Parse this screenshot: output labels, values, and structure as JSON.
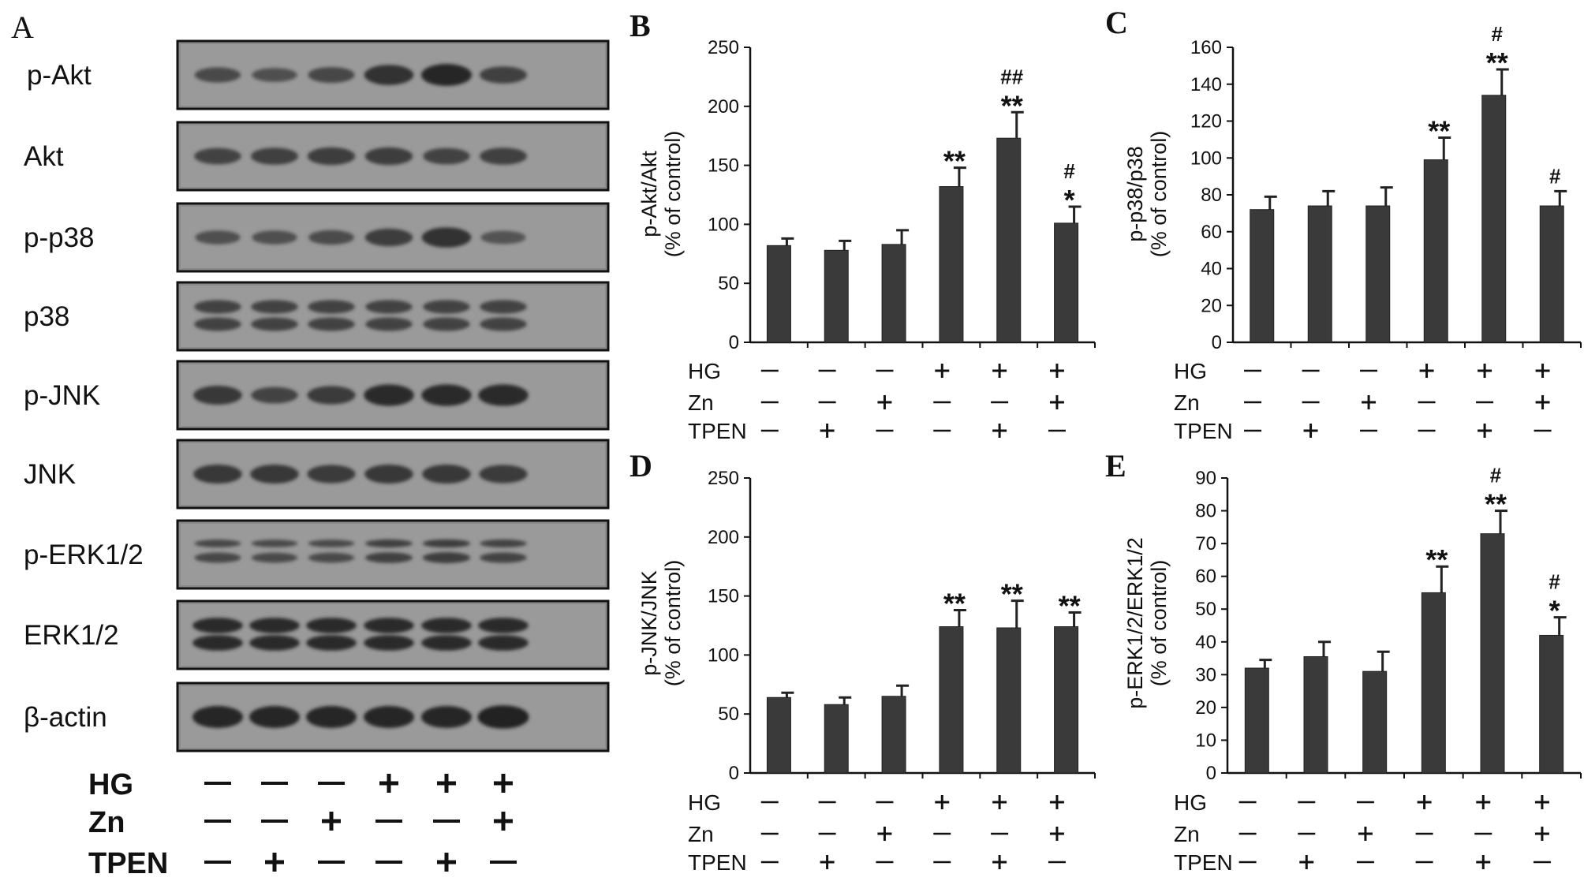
{
  "panel_letters": [
    "A",
    "B",
    "C",
    "D",
    "E"
  ],
  "treatments": {
    "rows": [
      "HG",
      "Zn",
      "TPEN"
    ],
    "signs": [
      [
        "−",
        "−",
        "−",
        "+",
        "+",
        "+"
      ],
      [
        "−",
        "−",
        "+",
        "−",
        "−",
        "+"
      ],
      [
        "−",
        "+",
        "−",
        "−",
        "+",
        "−"
      ]
    ]
  },
  "blot": {
    "letter": "A",
    "rows": [
      {
        "label": "p-Akt",
        "bands": [
          0.45,
          0.35,
          0.5,
          0.85,
          1.0,
          0.6
        ]
      },
      {
        "label": "Akt",
        "bands": [
          0.55,
          0.6,
          0.65,
          0.65,
          0.55,
          0.6
        ]
      },
      {
        "label": "p-p38",
        "bands": [
          0.35,
          0.35,
          0.4,
          0.65,
          0.85,
          0.3
        ]
      },
      {
        "label": "p38",
        "bands": [
          0.55,
          0.55,
          0.55,
          0.55,
          0.55,
          0.55
        ]
      },
      {
        "label": "p-JNK",
        "bands": [
          0.75,
          0.55,
          0.7,
          0.95,
          0.95,
          0.95
        ]
      },
      {
        "label": "JNK",
        "bands": [
          0.75,
          0.75,
          0.7,
          0.75,
          0.75,
          0.7
        ]
      },
      {
        "label": "p-ERK1/2",
        "bands": [
          0.5,
          0.45,
          0.45,
          0.6,
          0.65,
          0.55
        ]
      },
      {
        "label": "ERK1/2",
        "bands": [
          0.95,
          0.95,
          0.95,
          0.95,
          0.95,
          0.95
        ]
      },
      {
        "label": "β-actin",
        "bands": [
          1.0,
          1.0,
          1.0,
          1.0,
          1.0,
          1.1
        ]
      }
    ]
  },
  "chart_data": [
    {
      "panel": "B",
      "type": "bar",
      "ylabel": [
        "p-Akt/Akt",
        "(% of control)"
      ],
      "ylim": [
        0,
        250
      ],
      "yticks": [
        0,
        50,
        100,
        150,
        200,
        250
      ],
      "values": [
        82,
        78,
        83,
        132,
        173,
        101
      ],
      "errors": [
        6,
        8,
        12,
        16,
        22,
        14
      ],
      "annotations": [
        [],
        [],
        [],
        [
          "**"
        ],
        [
          "##",
          "**"
        ],
        [
          "#",
          "*"
        ]
      ]
    },
    {
      "panel": "C",
      "type": "bar",
      "ylabel": [
        "p-p38/p38",
        "(% of control)"
      ],
      "ylim": [
        0,
        160
      ],
      "yticks": [
        0,
        20,
        40,
        60,
        80,
        100,
        120,
        140,
        160
      ],
      "values": [
        72,
        74,
        74,
        99,
        134,
        74
      ],
      "errors": [
        7,
        8,
        10,
        12,
        14,
        8
      ],
      "annotations": [
        [],
        [],
        [],
        [
          "**"
        ],
        [
          "#",
          "**"
        ],
        [
          "#"
        ]
      ]
    },
    {
      "panel": "D",
      "type": "bar",
      "ylabel": [
        "p-JNK/JNK",
        "(% of control)"
      ],
      "ylim": [
        0,
        250
      ],
      "yticks": [
        0,
        50,
        100,
        150,
        200,
        250
      ],
      "values": [
        64,
        58,
        65,
        124,
        123,
        124
      ],
      "errors": [
        4,
        6,
        9,
        14,
        23,
        12
      ],
      "annotations": [
        [],
        [],
        [],
        [
          "**"
        ],
        [
          "**"
        ],
        [
          "**"
        ]
      ]
    },
    {
      "panel": "E",
      "type": "bar",
      "ylabel": [
        "p-ERK1/2/ERK1/2",
        "(% of control)"
      ],
      "ylim": [
        0,
        90
      ],
      "yticks": [
        0,
        10,
        20,
        30,
        40,
        50,
        60,
        70,
        80,
        90
      ],
      "values": [
        32,
        35.5,
        31,
        55,
        73,
        42
      ],
      "errors": [
        2.5,
        4.5,
        6,
        8,
        7,
        5.5
      ],
      "annotations": [
        [],
        [],
        [],
        [
          "**"
        ],
        [
          "#",
          "**"
        ],
        [
          "#",
          "*"
        ]
      ]
    }
  ]
}
